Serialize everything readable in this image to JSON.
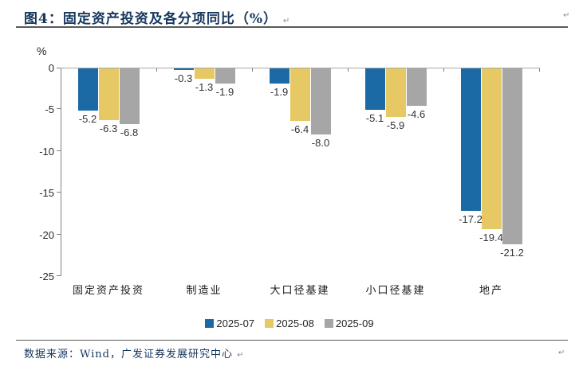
{
  "figure": {
    "title": "图4：固定资产投资及各分项同比（%）",
    "footer": "数据来源：Wind，广发证券发展研究中心",
    "paragraph_mark": "↵"
  },
  "colors": {
    "accent_navy": "#17375E",
    "series_blue": "#1C6AA5",
    "series_yellow": "#E6C864",
    "series_gray": "#A6A6A6",
    "axis_gray": "#808080",
    "rule_gray": "#595959"
  },
  "chart_data": {
    "type": "bar",
    "title": "固定资产投资及各分项同比（%）",
    "xlabel": "",
    "ylabel": "%",
    "ylim": [
      -25,
      0
    ],
    "yticks": [
      0,
      -5,
      -10,
      -15,
      -20,
      -25
    ],
    "grid": false,
    "legend_position": "bottom",
    "value_labels": true,
    "categories": [
      "固定资产投资",
      "制造业",
      "大口径基建",
      "小口径基建",
      "地产"
    ],
    "series": [
      {
        "name": "2025-07",
        "color": "#1C6AA5",
        "values": [
          -5.2,
          -0.3,
          -1.9,
          -5.1,
          -17.2
        ]
      },
      {
        "name": "2025-08",
        "color": "#E6C864",
        "values": [
          -6.3,
          -1.3,
          -6.4,
          -5.9,
          -19.4
        ]
      },
      {
        "name": "2025-09",
        "color": "#A6A6A6",
        "values": [
          -6.8,
          -1.9,
          -8.0,
          -4.6,
          -21.2
        ]
      }
    ]
  }
}
